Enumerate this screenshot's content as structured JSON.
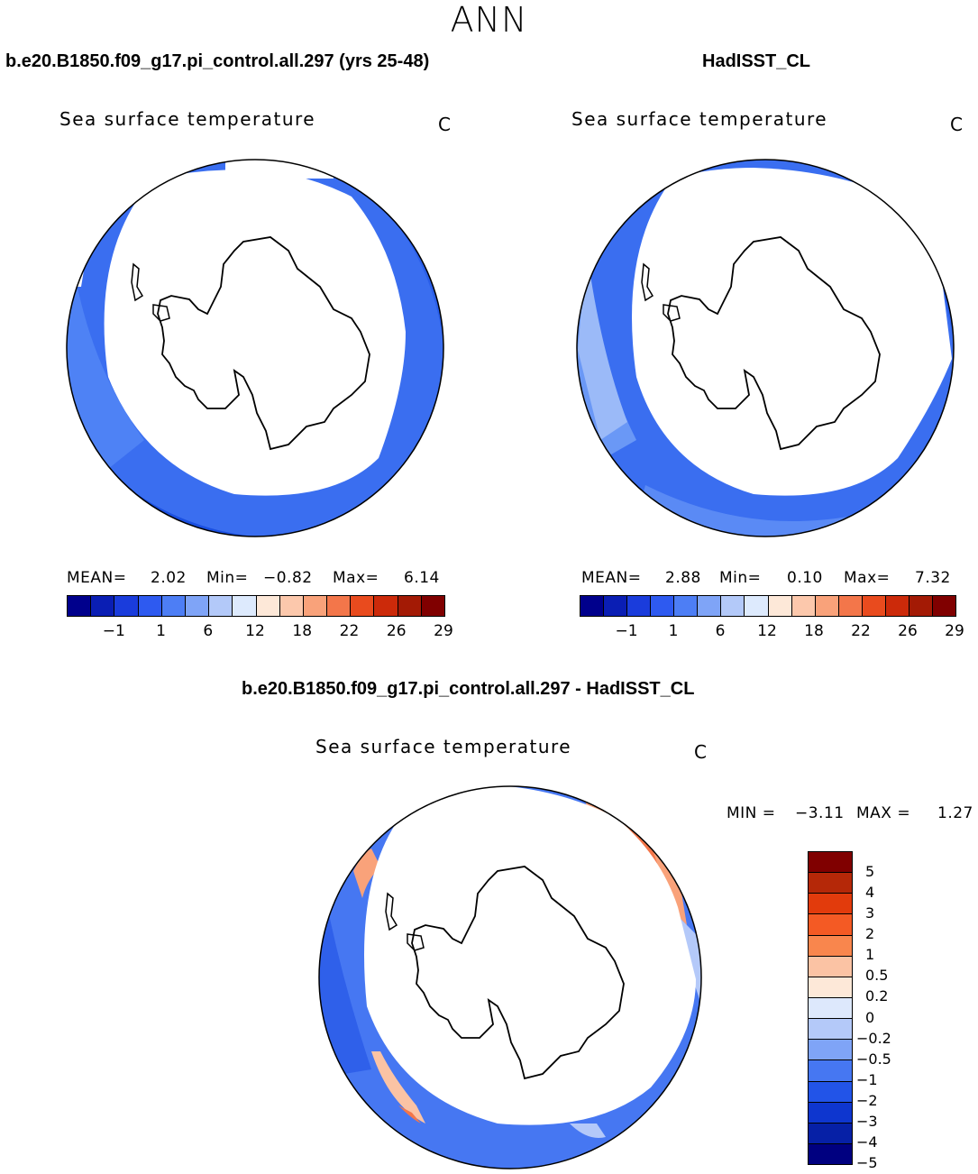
{
  "season": "ANN",
  "panels": {
    "left": {
      "case_title": "b.e20.B1850.f09_g17.pi_control.all.297 (yrs 25-48)",
      "variable": "Sea surface temperature",
      "units": "C",
      "mean_label": "MEAN=",
      "mean_value": "2.02",
      "min_label": "Min=",
      "min_value": "−0.82",
      "max_label": "Max=",
      "max_value": "6.14"
    },
    "right": {
      "case_title": "HadISST_CL",
      "variable": "Sea surface temperature",
      "units": "C",
      "mean_label": "MEAN=",
      "mean_value": "2.88",
      "min_label": "Min=",
      "min_value": "0.10",
      "max_label": "Max=",
      "max_value": "7.32"
    },
    "diff": {
      "case_title": "b.e20.B1850.f09_g17.pi_control.all.297 - HadISST_CL",
      "variable": "Sea surface temperature",
      "units": "C",
      "min_label": "MIN =",
      "min_value": "−3.11",
      "max_label": "MAX =",
      "max_value": "1.27"
    }
  },
  "colorbar_sst": {
    "colors": [
      "#00008c",
      "#0a1eb4",
      "#1a3cdc",
      "#2e5af0",
      "#4d7ef5",
      "#7fa4f7",
      "#b3c9f9",
      "#ddeafd",
      "#fde8d8",
      "#fcc8ac",
      "#f9a27a",
      "#f3764a",
      "#e94b1e",
      "#cc2a0a",
      "#a31a05",
      "#800000"
    ],
    "tick_labels": [
      "−1",
      "1",
      "6",
      "12",
      "18",
      "22",
      "26",
      "29"
    ]
  },
  "colorbar_diff": {
    "colors": [
      "#800000",
      "#b52808",
      "#e23b0c",
      "#f45a24",
      "#f9864d",
      "#fbc3a4",
      "#fde8d8",
      "#dde8fc",
      "#b4c9f9",
      "#7fa4f7",
      "#4677f2",
      "#2254e8",
      "#0e36cf",
      "#0620a6",
      "#000080"
    ],
    "tick_labels": [
      "5",
      "4",
      "3",
      "2",
      "1",
      "0.5",
      "0.2",
      "0",
      "−0.2",
      "−0.5",
      "−1",
      "−2",
      "−3",
      "−4",
      "−5"
    ]
  }
}
